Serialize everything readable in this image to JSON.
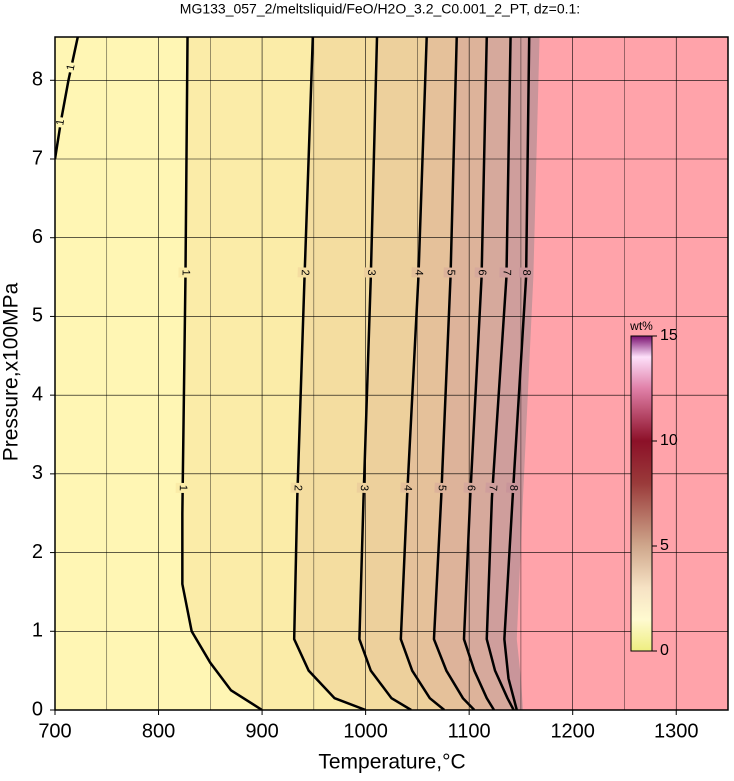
{
  "chart_data": {
    "type": "contour",
    "title": "MG133_057_2/meltsliquid/FeO/H2O_3.2_C0.001_2_PT, dz=0.1:",
    "xlabel": "Temperature,°C",
    "ylabel": "Pressure,x100MPa",
    "xlim": [
      700,
      1350
    ],
    "ylim": [
      0,
      8.55
    ],
    "xticks": [
      700,
      800,
      900,
      1000,
      1100,
      1200,
      1300
    ],
    "yticks": [
      0,
      1,
      2,
      3,
      4,
      5,
      6,
      7,
      8
    ],
    "xminor": [
      750,
      850,
      950,
      1050,
      1150,
      1250
    ],
    "grid": true,
    "background": "#fff6b4",
    "series": [
      {
        "level": 1,
        "fill": "#fbeca8",
        "x": [
          828,
          826,
          823,
          823,
          832,
          850,
          870,
          900
        ],
        "y": [
          8.55,
          5.5,
          2.5,
          1.6,
          1.0,
          0.6,
          0.25,
          0
        ]
      },
      {
        "level": 1,
        "x": [
          700,
          706,
          713,
          722
        ],
        "y": [
          7.0,
          7.5,
          8.0,
          8.55
        ]
      },
      {
        "level": 2,
        "fill": "#f4dda0",
        "x": [
          949,
          941,
          934,
          931,
          945,
          970,
          1000
        ],
        "y": [
          8.55,
          5.5,
          2.7,
          0.9,
          0.5,
          0.15,
          0
        ]
      },
      {
        "level": 3,
        "fill": "#edd09c",
        "x": [
          1011,
          1005,
          998,
          994,
          1005,
          1025,
          1044
        ],
        "y": [
          8.55,
          5.5,
          2.7,
          0.9,
          0.5,
          0.15,
          0
        ]
      },
      {
        "level": 4,
        "fill": "#e5c19a",
        "x": [
          1059,
          1051,
          1040,
          1034,
          1045,
          1062,
          1076
        ],
        "y": [
          8.55,
          5.5,
          2.7,
          0.9,
          0.5,
          0.15,
          0
        ]
      },
      {
        "level": 5,
        "fill": "#ddb39a",
        "x": [
          1088,
          1082,
          1073,
          1066,
          1078,
          1094,
          1105
        ],
        "y": [
          8.55,
          5.5,
          2.7,
          0.9,
          0.5,
          0.15,
          0
        ]
      },
      {
        "level": 6,
        "fill": "#d6a99c",
        "x": [
          1117,
          1112,
          1101,
          1095,
          1105,
          1117,
          1124
        ],
        "y": [
          8.55,
          5.5,
          2.7,
          0.9,
          0.5,
          0.15,
          0
        ]
      },
      {
        "level": 7,
        "fill": "#cf9e9c",
        "x": [
          1140,
          1136,
          1122,
          1117,
          1125,
          1137,
          1143
        ],
        "y": [
          8.55,
          5.5,
          2.7,
          0.9,
          0.5,
          0.15,
          0
        ]
      },
      {
        "level": 8,
        "fill": "#c9959a",
        "x": [
          1158,
          1155,
          1142,
          1134,
          1138,
          1146
        ],
        "y": [
          8.55,
          5.5,
          2.7,
          0.9,
          0.4,
          0
        ]
      }
    ],
    "masked": {
      "color": "#ffa3aa",
      "x": [
        1168,
        1162,
        1152,
        1146,
        1150,
        1152
      ],
      "y": [
        8.55,
        5.5,
        2.7,
        0.9,
        0.4,
        0
      ]
    },
    "colorbar": {
      "label": "wt%",
      "clim": [
        0,
        15
      ],
      "ticks": [
        0,
        5,
        10,
        15
      ],
      "colormap": [
        {
          "value": 0,
          "color": "#eeee80"
        },
        {
          "value": 1.5,
          "color": "#fffad0"
        },
        {
          "value": 3,
          "color": "#f6e2c4"
        },
        {
          "value": 5,
          "color": "#cfa78c"
        },
        {
          "value": 8,
          "color": "#9a3a3a"
        },
        {
          "value": 10,
          "color": "#8c1028"
        },
        {
          "value": 12.5,
          "color": "#e080a8"
        },
        {
          "value": 14,
          "color": "#fde0fa"
        },
        {
          "value": 15,
          "color": "#7a1070"
        }
      ]
    }
  }
}
